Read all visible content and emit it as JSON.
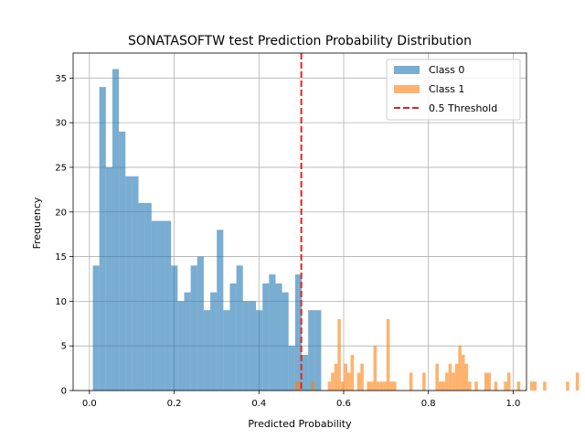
{
  "chart_data": {
    "type": "bar",
    "title": "SONATASOFTW test Prediction Probability Distribution",
    "xlabel": "Predicted Probability",
    "ylabel": "Frequency",
    "xlim": [
      -0.0385,
      1.0315
    ],
    "ylim": [
      0,
      37.8
    ],
    "xticks": [
      0.0,
      0.2,
      0.4,
      0.6,
      0.8,
      1.0
    ],
    "xtick_labels": [
      "0.0",
      "0.2",
      "0.4",
      "0.6",
      "0.8",
      "1.0"
    ],
    "yticks": [
      0,
      5,
      10,
      15,
      20,
      25,
      30,
      35
    ],
    "ytick_labels": [
      "0",
      "5",
      "10",
      "15",
      "20",
      "25",
      "30",
      "35"
    ],
    "grid": true,
    "legend_position": "top-right",
    "threshold": {
      "x": 0.5,
      "label": "0.5 Threshold",
      "color": "#d62728"
    },
    "series": [
      {
        "name": "Class 0",
        "color": "#1f77b4",
        "opacity": 0.6,
        "bin_start": 0.008,
        "bin_width": 0.0154,
        "counts": [
          14,
          34,
          25,
          36,
          29,
          24,
          24,
          21,
          21,
          19,
          19,
          19,
          14,
          10,
          11,
          14,
          15,
          9,
          11,
          18,
          9,
          12,
          14,
          10,
          10,
          9,
          12,
          13,
          12,
          11,
          5,
          13,
          4,
          9,
          9
        ]
      },
      {
        "name": "Class 1",
        "color": "#ff7f0e",
        "opacity": 0.6,
        "bin_start": 0.4855,
        "bin_width": 0.0077,
        "counts": [
          1,
          1,
          0,
          0,
          0,
          1,
          0,
          0,
          0,
          0,
          1,
          2,
          3,
          8,
          1,
          3,
          2,
          4,
          0,
          2,
          3,
          0,
          1,
          1,
          5,
          1,
          1,
          1,
          8,
          1,
          1,
          0,
          0,
          0,
          0,
          2,
          0,
          0,
          0,
          2,
          0,
          0,
          0,
          3,
          1,
          1,
          2,
          3,
          2,
          3,
          5,
          4,
          3,
          1,
          0,
          1,
          0,
          0,
          2,
          2,
          0,
          1,
          0,
          0,
          1,
          2,
          0,
          0,
          1,
          0,
          0,
          0,
          1,
          1,
          0,
          0,
          1,
          0,
          0,
          0,
          0,
          0,
          0,
          1,
          0,
          0,
          2,
          0,
          0,
          0,
          0,
          0,
          0,
          0,
          0,
          0,
          0,
          0,
          0,
          0,
          0
        ]
      }
    ]
  }
}
